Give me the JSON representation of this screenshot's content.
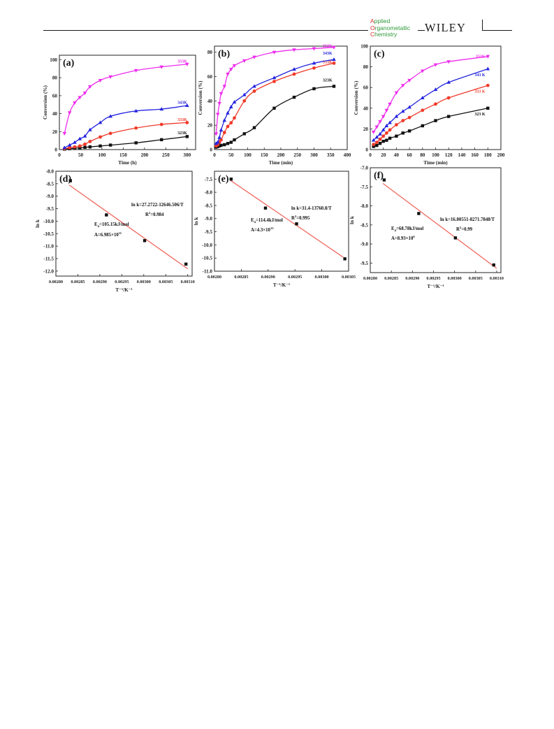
{
  "header": {
    "journal_lines": [
      {
        "cap": "A",
        "rest": "pplied"
      },
      {
        "cap": "O",
        "rest": "rganometallic"
      },
      {
        "cap": "C",
        "rest": "hemistry"
      }
    ],
    "publisher": "WILEY"
  },
  "colors": {
    "323K": "#111111",
    "333K": "#f03a2a",
    "343K": "#2323e0",
    "353K": "#ee2cee",
    "fit_line": "#f06a60"
  },
  "chart_data": [
    {
      "id": "a",
      "type": "line",
      "panel_label": "(a)",
      "xlabel": "Time (h)",
      "ylabel": "Conversion (%)",
      "xlim": [
        0,
        320
      ],
      "ylim": [
        0,
        105
      ],
      "xticks": [
        0,
        50,
        100,
        150,
        200,
        250,
        300
      ],
      "yticks": [
        0,
        20,
        40,
        60,
        80,
        100
      ],
      "series": [
        {
          "name": "323K",
          "color": "#111111",
          "label_xy": [
            300,
            17
          ],
          "x": [
            12,
            24,
            36,
            48,
            60,
            72,
            96,
            120,
            180,
            240,
            300
          ],
          "y": [
            0.5,
            1,
            1.5,
            2,
            2.5,
            3,
            4,
            5,
            7.5,
            11,
            14.5
          ]
        },
        {
          "name": "333K",
          "color": "#f03a2a",
          "label_xy": [
            300,
            32
          ],
          "x": [
            12,
            24,
            36,
            48,
            60,
            72,
            96,
            120,
            180,
            240,
            300
          ],
          "y": [
            1,
            2,
            3,
            4,
            6,
            9,
            14,
            18,
            24,
            28,
            30
          ]
        },
        {
          "name": "343K",
          "color": "#2323e0",
          "label_xy": [
            300,
            51
          ],
          "x": [
            12,
            24,
            36,
            48,
            60,
            72,
            96,
            120,
            180,
            240,
            300
          ],
          "y": [
            2,
            5,
            8,
            12,
            15,
            22,
            30,
            37,
            43,
            45,
            49
          ]
        },
        {
          "name": "353K",
          "color": "#ee2cee",
          "label_xy": [
            300,
            97
          ],
          "x": [
            12,
            24,
            36,
            48,
            60,
            72,
            96,
            120,
            180,
            240,
            300
          ],
          "y": [
            18,
            41,
            52,
            58,
            63,
            70,
            77,
            81,
            88,
            92,
            95
          ]
        }
      ]
    },
    {
      "id": "b",
      "type": "line",
      "panel_label": "(b)",
      "xlabel": "Time (min)",
      "ylabel": "Conversion (%)",
      "xlim": [
        0,
        400
      ],
      "ylim": [
        0,
        85
      ],
      "xticks": [
        0,
        50,
        100,
        150,
        200,
        250,
        300,
        350,
        400
      ],
      "yticks": [
        0,
        20,
        40,
        60,
        80
      ],
      "series": [
        {
          "name": "323K",
          "color": "#111111",
          "label_xy": [
            355,
            56
          ],
          "x": [
            5,
            10,
            15,
            20,
            30,
            40,
            50,
            60,
            90,
            120,
            180,
            240,
            300,
            360
          ],
          "y": [
            2,
            2.5,
            3,
            3.5,
            4,
            5,
            6,
            8,
            13,
            18,
            34,
            43,
            50,
            52
          ]
        },
        {
          "name": "333K",
          "color": "#f03a2a",
          "label_xy": [
            355,
            71
          ],
          "x": [
            5,
            10,
            15,
            20,
            30,
            40,
            50,
            60,
            90,
            120,
            180,
            240,
            300,
            360
          ],
          "y": [
            3,
            4,
            6,
            8,
            14,
            19,
            22,
            26,
            40,
            48,
            56,
            62,
            67,
            71
          ]
        },
        {
          "name": "343K",
          "color": "#2323e0",
          "label_xy": [
            355,
            78
          ],
          "x": [
            5,
            10,
            15,
            20,
            30,
            40,
            50,
            60,
            90,
            120,
            180,
            240,
            300,
            360
          ],
          "y": [
            5,
            6,
            10,
            16,
            24,
            30,
            35,
            39,
            45,
            52,
            59,
            66,
            71,
            74
          ]
        },
        {
          "name": "353K",
          "color": "#ee2cee",
          "label_xy": [
            355,
            84
          ],
          "x": [
            5,
            10,
            15,
            20,
            30,
            40,
            50,
            60,
            90,
            120,
            180,
            240,
            300,
            360
          ],
          "y": [
            13,
            29,
            38,
            46,
            52,
            62,
            66,
            69,
            73,
            76,
            80,
            82,
            83,
            84
          ]
        }
      ]
    },
    {
      "id": "c",
      "type": "line",
      "panel_label": "(c)",
      "xlabel": "Time (min)",
      "ylabel": "Conversion (%)",
      "xlim": [
        0,
        200
      ],
      "ylim": [
        0,
        100
      ],
      "xticks": [
        0,
        20,
        40,
        60,
        80,
        100,
        120,
        140,
        160,
        180,
        200
      ],
      "yticks": [
        0,
        20,
        40,
        60,
        80,
        100
      ],
      "series": [
        {
          "name": "323 K",
          "color": "#111111",
          "label_xy": [
            176,
            33
          ],
          "x": [
            5,
            10,
            15,
            20,
            25,
            30,
            40,
            50,
            60,
            80,
            100,
            120,
            180
          ],
          "y": [
            3,
            4,
            6,
            8,
            9,
            11,
            13,
            16,
            18,
            23,
            28,
            32,
            40
          ]
        },
        {
          "name": "333 K",
          "color": "#f03a2a",
          "label_xy": [
            176,
            55
          ],
          "x": [
            5,
            10,
            15,
            20,
            25,
            30,
            40,
            50,
            60,
            80,
            100,
            120,
            180
          ],
          "y": [
            5,
            7,
            10,
            13,
            16,
            19,
            24,
            28,
            31,
            38,
            44,
            50,
            62
          ]
        },
        {
          "name": "343 K",
          "color": "#2323e0",
          "label_xy": [
            176,
            71
          ],
          "x": [
            5,
            10,
            15,
            20,
            25,
            30,
            40,
            50,
            60,
            80,
            100,
            120,
            180
          ],
          "y": [
            9,
            12,
            15,
            19,
            23,
            26,
            32,
            37,
            41,
            50,
            58,
            65,
            78
          ]
        },
        {
          "name": "353K",
          "color": "#ee2cee",
          "label_xy": [
            176,
            89
          ],
          "x": [
            5,
            10,
            15,
            20,
            25,
            30,
            40,
            50,
            60,
            80,
            100,
            120,
            180
          ],
          "y": [
            17,
            22,
            27,
            32,
            38,
            44,
            55,
            62,
            67,
            76,
            82,
            85,
            90
          ]
        }
      ]
    },
    {
      "id": "d",
      "type": "scatter",
      "panel_label": "(d)",
      "xlabel": "T⁻¹/K⁻¹",
      "ylabel": "ln k",
      "xlim": [
        0.0028,
        0.00311
      ],
      "ylim": [
        -12.2,
        -8.0
      ],
      "xticks": [
        0.0028,
        0.00285,
        0.0029,
        0.00295,
        0.003,
        0.00305,
        0.0031
      ],
      "xtick_labels": [
        "0.00280",
        "0.00285",
        "0.00290",
        "0.00295",
        "0.00300",
        "0.00305",
        "0.00310"
      ],
      "yticks": [
        -8.0,
        -8.5,
        -9.0,
        -9.5,
        -10.0,
        -10.5,
        -11.0,
        -11.5,
        -12.0
      ],
      "ytick_labels": [
        "-8.0",
        "-8.5",
        "-9.0",
        "-9.5",
        "-10.0",
        "-10.5",
        "-11.0",
        "-11.5",
        "-12.0"
      ],
      "points": {
        "x": [
          0.002833,
          0.002915,
          0.003002,
          0.003096
        ],
        "y": [
          -8.38,
          -9.75,
          -10.78,
          -11.72
        ]
      },
      "fit": {
        "x": [
          0.00283,
          0.0031
        ],
        "y": [
          -8.55,
          -11.91
        ]
      },
      "annotations": {
        "equation": "ln k=27.2722-12646.506/T",
        "r2_value": "=0.984",
        "ea_value": "=105.15kJ/mol",
        "a_value": "A=6.985×10",
        "a_exp": "11"
      }
    },
    {
      "id": "e",
      "type": "scatter",
      "panel_label": "(e)",
      "xlabel": "T⁻¹/K⁻¹",
      "ylabel": "ln k",
      "xlim": [
        0.0028,
        0.00305
      ],
      "ylim": [
        -11.0,
        -7.2
      ],
      "xticks": [
        0.0028,
        0.00285,
        0.0029,
        0.00295,
        0.003,
        0.00305
      ],
      "xtick_labels": [
        "0.00280",
        "0.00285",
        "0.00290",
        "0.00295",
        "0.00300",
        "0.00305"
      ],
      "yticks": [
        -7.5,
        -8.0,
        -8.5,
        -9.0,
        -9.5,
        -10.0,
        -10.5,
        -11.0
      ],
      "ytick_labels": [
        "-7.5",
        "-8.0",
        "-8.5",
        "-9.0",
        "-9.5",
        "-10.0",
        "-10.5",
        "-11.0"
      ],
      "points": {
        "x": [
          0.002831,
          0.002895,
          0.002953,
          0.003043
        ],
        "y": [
          -7.5,
          -8.6,
          -9.2,
          -10.53
        ]
      },
      "fit": {
        "x": [
          0.00283,
          0.00304
        ],
        "y": [
          -7.55,
          -10.47
        ]
      },
      "annotations": {
        "equation": "ln k=31.4-13760.8/T",
        "r2_value": "=0.995",
        "ea_value": "=114.4kJ/mol",
        "a_value": "A=4.3×10",
        "a_exp": "13"
      }
    },
    {
      "id": "f",
      "type": "scatter",
      "panel_label": "(f)",
      "xlabel": "T⁻¹/K⁻¹",
      "ylabel": "ln k",
      "xlim": [
        0.0028,
        0.00311
      ],
      "ylim": [
        -9.75,
        -7.0
      ],
      "xticks": [
        0.0028,
        0.00285,
        0.0029,
        0.00295,
        0.003,
        0.00305,
        0.0031
      ],
      "xtick_labels": [
        "0.00280",
        "0.00285",
        "0.00290",
        "0.00295",
        "0.00300",
        "0.00305",
        "0.00310"
      ],
      "yticks": [
        -7.0,
        -7.5,
        -8.0,
        -8.5,
        -9.0,
        -9.5
      ],
      "ytick_labels": [
        "-7.0",
        "-7.5",
        "-8.0",
        "-8.5",
        "-9.0",
        "-9.5"
      ],
      "points": {
        "x": [
          0.002833,
          0.002915,
          0.003002,
          0.003093
        ],
        "y": [
          -7.32,
          -8.2,
          -8.84,
          -9.55
        ]
      },
      "fit": {
        "x": [
          0.00283,
          0.0031
        ],
        "y": [
          -7.41,
          -9.64
        ]
      },
      "annotations": {
        "equation": "ln k=16.00551-8271.7848/T",
        "r2_value": "=0.99",
        "ea_value": "=68.78kJ/mol",
        "a_value": "A=8.93×10",
        "a_exp": "6"
      }
    }
  ]
}
